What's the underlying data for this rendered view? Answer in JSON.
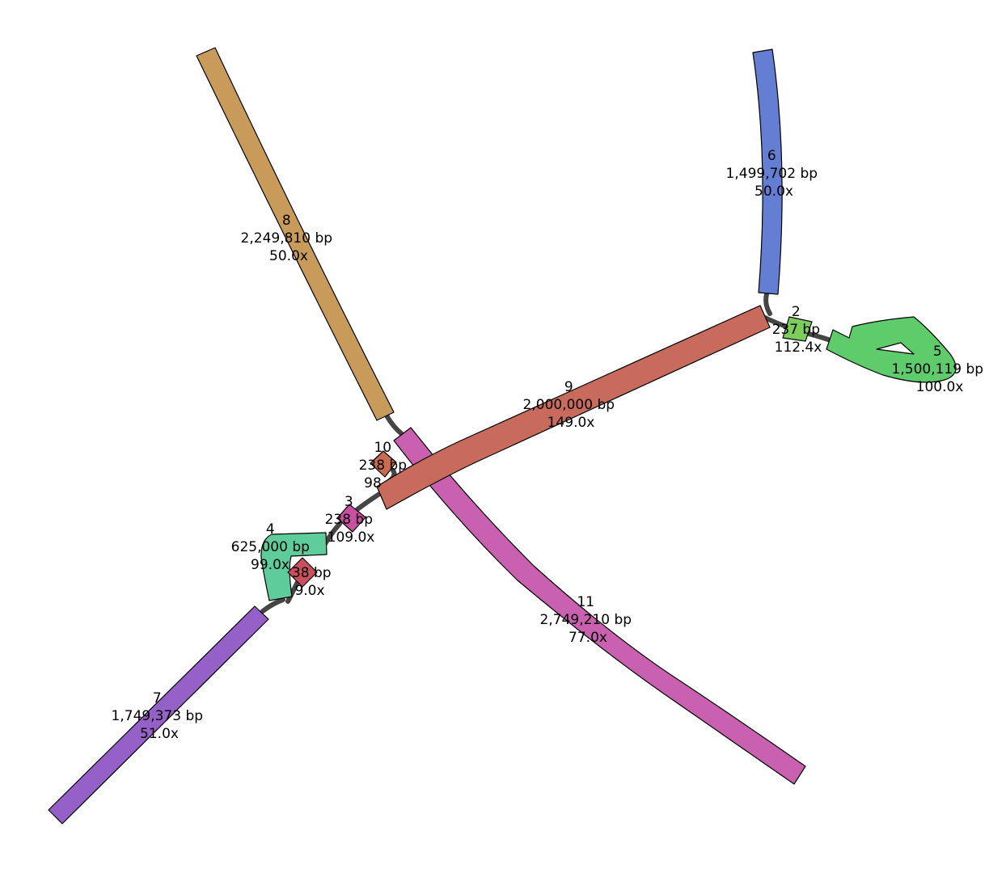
{
  "nodes": [
    {
      "id": "n2",
      "name": "2",
      "length": "237 bp",
      "depth": "112.4x",
      "color": "#7ccd5c"
    },
    {
      "id": "n3",
      "name": "3",
      "length": "238 bp",
      "depth": "109.0x",
      "color": "#c94fa0"
    },
    {
      "id": "n4",
      "name": "4",
      "length": "625,000 bp",
      "depth": "99.0x",
      "color": "#5fcc9c"
    },
    {
      "id": "n5",
      "name": "5",
      "length": "1,500,119 bp",
      "depth": "100.0x",
      "color": "#5fcc6c"
    },
    {
      "id": "n6",
      "name": "6",
      "length": "1,499,702 bp",
      "depth": "50.0x",
      "color": "#637ed2"
    },
    {
      "id": "n7",
      "name": "7",
      "length": "1,749,373 bp",
      "depth": "51.0x",
      "color": "#9660c9"
    },
    {
      "id": "n8",
      "name": "8",
      "length": "2,249,810 bp",
      "depth": "50.0x",
      "color": "#c99b5b"
    },
    {
      "id": "n9",
      "name": "9",
      "length": "2,000,000 bp",
      "depth": "149.0x",
      "color": "#c96b5c"
    },
    {
      "id": "n10",
      "name": "10",
      "length": "238 bp",
      "depth": "98",
      "color": "#c96b4e"
    },
    {
      "id": "n11",
      "name": "11",
      "length": "2,749,210 bp",
      "depth": "77.0x",
      "color": "#c960b0"
    },
    {
      "id": "n12",
      "name": "",
      "length": "38 bp",
      "depth": "9.0x",
      "color": "#c9505c"
    }
  ]
}
